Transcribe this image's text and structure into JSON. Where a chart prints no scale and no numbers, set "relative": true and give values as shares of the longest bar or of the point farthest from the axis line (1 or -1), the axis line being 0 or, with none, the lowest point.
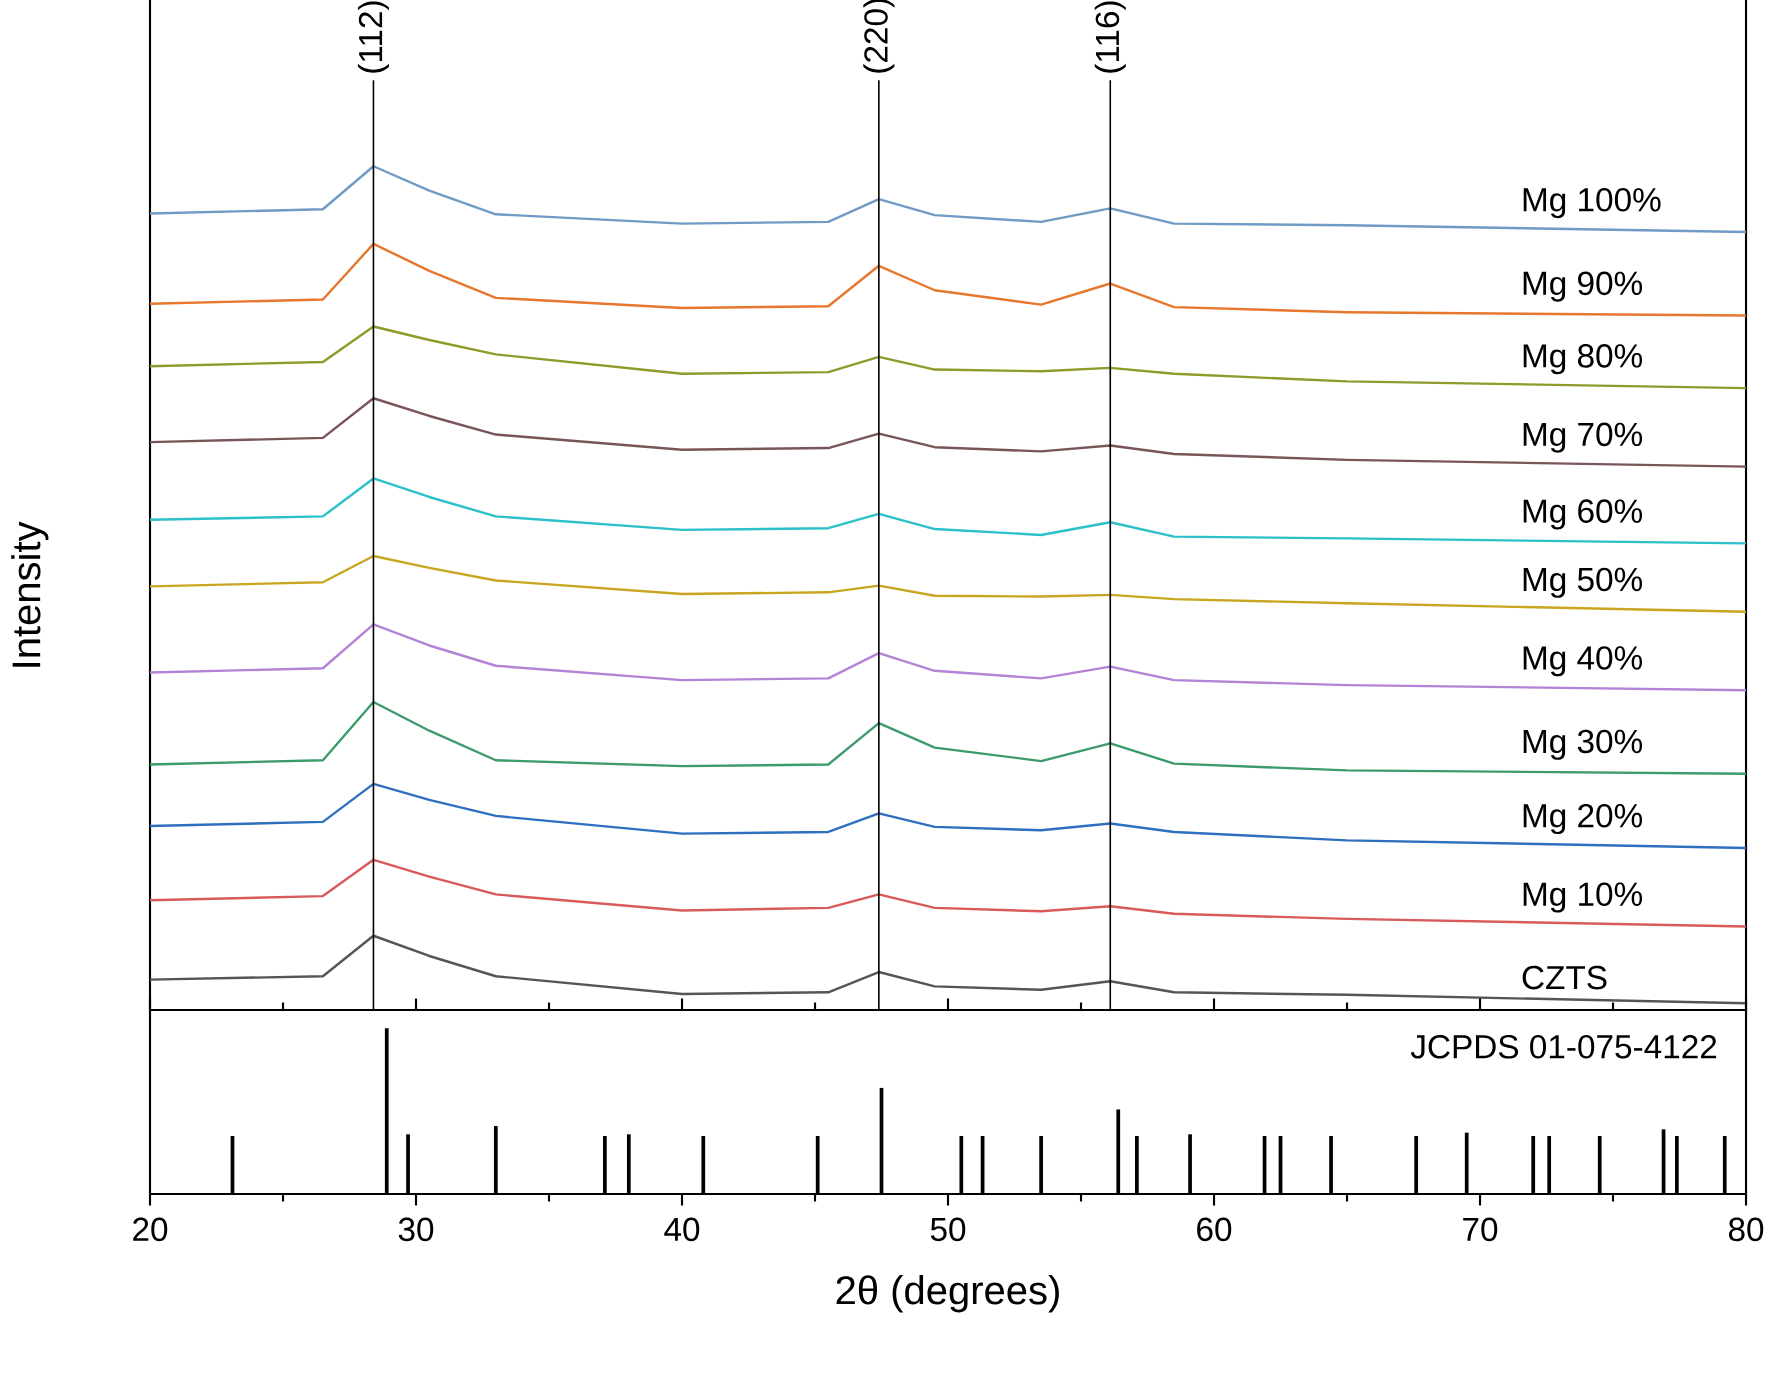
{
  "chart_data": [
    {
      "type": "line",
      "relative": true,
      "xlim": [
        20,
        80
      ],
      "tick_labels": false,
      "ylabel": "Intensity",
      "x": [
        20,
        26.5,
        28.4,
        30.5,
        33,
        40,
        45.5,
        47.4,
        49.5,
        53.5,
        56.1,
        58.5,
        65,
        80
      ],
      "series": [
        {
          "name": "Mg 100%",
          "color": "#6f9bc4",
          "values": [
            0.944,
            0.949,
            1.0,
            0.971,
            0.943,
            0.932,
            0.934,
            0.961,
            0.942,
            0.934,
            0.95,
            0.932,
            0.93,
            0.922
          ]
        },
        {
          "name": "Mg 90%",
          "color": "#e8772e",
          "values": [
            0.837,
            0.842,
            0.908,
            0.876,
            0.844,
            0.832,
            0.834,
            0.882,
            0.853,
            0.836,
            0.861,
            0.833,
            0.827,
            0.823
          ]
        },
        {
          "name": "Mg 80%",
          "color": "#8f9a2a",
          "values": [
            0.763,
            0.768,
            0.81,
            0.794,
            0.777,
            0.754,
            0.756,
            0.774,
            0.759,
            0.757,
            0.761,
            0.754,
            0.745,
            0.737
          ]
        },
        {
          "name": "Mg 70%",
          "color": "#7a5558",
          "values": [
            0.673,
            0.678,
            0.725,
            0.704,
            0.682,
            0.664,
            0.666,
            0.683,
            0.667,
            0.662,
            0.669,
            0.659,
            0.652,
            0.644
          ]
        },
        {
          "name": "Mg 60%",
          "color": "#2cc0c8",
          "values": [
            0.581,
            0.585,
            0.63,
            0.608,
            0.585,
            0.569,
            0.571,
            0.588,
            0.57,
            0.563,
            0.578,
            0.561,
            0.559,
            0.553
          ]
        },
        {
          "name": "Mg 50%",
          "color": "#c9a621",
          "values": [
            0.502,
            0.507,
            0.538,
            0.524,
            0.509,
            0.493,
            0.495,
            0.503,
            0.491,
            0.49,
            0.492,
            0.487,
            0.482,
            0.472
          ]
        },
        {
          "name": "Mg 40%",
          "color": "#b583d6",
          "values": [
            0.4,
            0.405,
            0.457,
            0.432,
            0.408,
            0.391,
            0.393,
            0.423,
            0.402,
            0.393,
            0.407,
            0.391,
            0.385,
            0.379
          ]
        },
        {
          "name": "Mg 30%",
          "color": "#3c9a6b",
          "values": [
            0.291,
            0.296,
            0.365,
            0.331,
            0.296,
            0.289,
            0.291,
            0.34,
            0.311,
            0.295,
            0.316,
            0.292,
            0.284,
            0.28
          ]
        },
        {
          "name": "Mg 20%",
          "color": "#2f6fbf",
          "values": [
            0.218,
            0.223,
            0.268,
            0.249,
            0.23,
            0.209,
            0.211,
            0.233,
            0.217,
            0.213,
            0.221,
            0.211,
            0.201,
            0.192
          ]
        },
        {
          "name": "Mg 10%",
          "color": "#d95a5a",
          "values": [
            0.13,
            0.135,
            0.178,
            0.158,
            0.137,
            0.118,
            0.121,
            0.137,
            0.121,
            0.117,
            0.123,
            0.114,
            0.108,
            0.099
          ]
        },
        {
          "name": "CZTS",
          "color": "#555555",
          "values": [
            0.036,
            0.04,
            0.088,
            0.064,
            0.04,
            0.019,
            0.021,
            0.045,
            0.028,
            0.024,
            0.034,
            0.021,
            0.018,
            0.008
          ]
        }
      ],
      "ref_lines": [
        {
          "axis": "x",
          "value": 28.4
        },
        {
          "axis": "x",
          "value": 47.4
        },
        {
          "axis": "x",
          "value": 56.1
        }
      ],
      "annotations": [
        "(112)",
        "(220)",
        "(116)"
      ]
    },
    {
      "type": "bar",
      "relative": true,
      "xlim": [
        20,
        80
      ],
      "xticks": [
        20,
        30,
        40,
        50,
        60,
        70,
        80
      ],
      "tick_labels": "x",
      "xlabel": "2θ (degrees)",
      "color": "#000000",
      "annotations": [
        "JCPDS 01-075-4122"
      ],
      "x": [
        23.1,
        28.9,
        29.7,
        33.0,
        37.1,
        38.0,
        40.8,
        45.1,
        47.5,
        50.5,
        51.3,
        53.5,
        56.4,
        57.1,
        59.1,
        61.9,
        62.5,
        64.4,
        67.6,
        69.5,
        72.0,
        72.6,
        74.5,
        76.9,
        77.4,
        79.2
      ],
      "values": [
        0.35,
        1.0,
        0.36,
        0.41,
        0.35,
        0.36,
        0.35,
        0.35,
        0.64,
        0.35,
        0.35,
        0.35,
        0.51,
        0.35,
        0.36,
        0.35,
        0.35,
        0.35,
        0.35,
        0.37,
        0.35,
        0.35,
        0.35,
        0.39,
        0.35,
        0.35
      ]
    }
  ]
}
